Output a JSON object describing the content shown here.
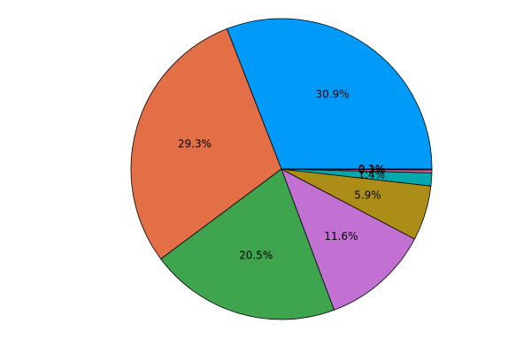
{
  "chart_data": {
    "type": "pie",
    "values": [
      30.9,
      29.3,
      20.5,
      11.6,
      5.9,
      1.4,
      0.3,
      0.1
    ],
    "value_labels": [
      "30.9%",
      "29.3%",
      "20.5%",
      "11.6%",
      "5.9%",
      "1.4%",
      "0.3%",
      "0.1%"
    ],
    "colors": [
      "#009af9",
      "#e26f46",
      "#3ea44e",
      "#c271d2",
      "#ac8d18",
      "#00a9ad",
      "#ed5e93",
      "#c68125"
    ]
  }
}
